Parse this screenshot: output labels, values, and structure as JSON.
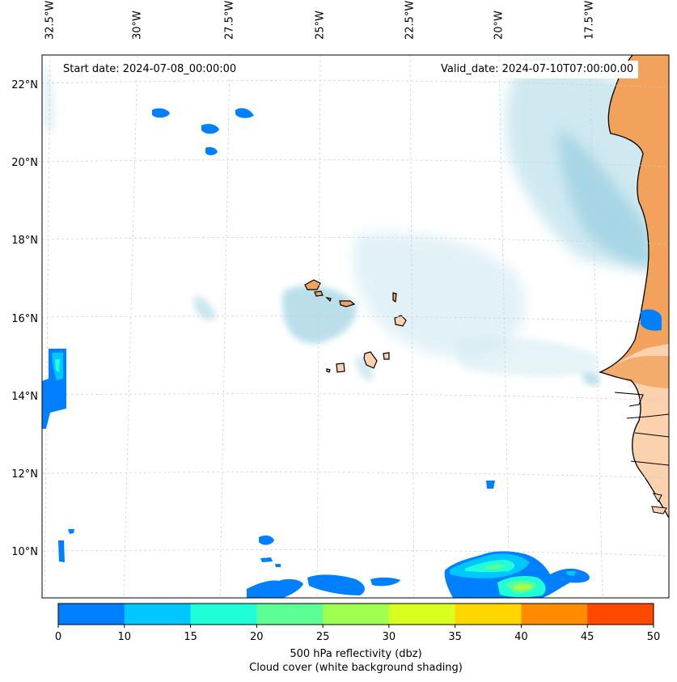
{
  "map": {
    "start_date_text": "Start date: 2024-07-08_00:00:00",
    "valid_date_text": "Valid_date: 2024-07-10T07:00:00.00",
    "longitude_labels": [
      "32.5°W",
      "30°W",
      "27.5°W",
      "25°W",
      "22.5°W",
      "20°W",
      "17.5°W"
    ],
    "latitude_labels": [
      "22°N",
      "20°N",
      "18°N",
      "16°N",
      "14°N",
      "12°N",
      "10°N"
    ],
    "region": "Cabo Verde islands and West African coast",
    "colors": {
      "land": "#f2a25b",
      "land_light": "#fbd2ad",
      "cloud": "#a9d8e6",
      "coastline": "#000000",
      "gridline": "#cccccc"
    }
  },
  "colorbar": {
    "ticks": [
      "0",
      "10",
      "15",
      "20",
      "25",
      "30",
      "35",
      "40",
      "45",
      "50"
    ],
    "colors": [
      "#0080ff",
      "#00c8ff",
      "#1effd8",
      "#5cff96",
      "#a0ff50",
      "#d8ff1e",
      "#ffd700",
      "#ff8c00",
      "#ff4800"
    ],
    "label": "500 hPa reflectivity (dbz)",
    "sublabel": "Cloud cover (white background shading)"
  }
}
